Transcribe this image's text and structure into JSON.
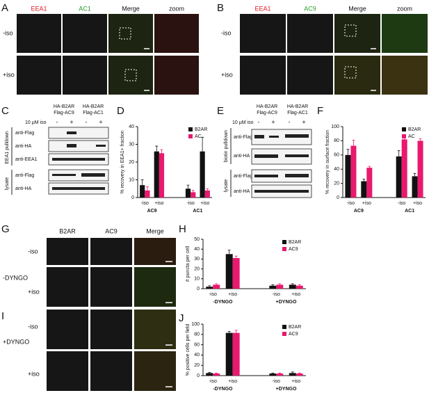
{
  "panels": {
    "A": {
      "letter": "A",
      "columns": [
        "EEA1",
        "AC1",
        "Merge",
        "zoom"
      ],
      "rows": [
        "-iso",
        "+iso"
      ]
    },
    "B": {
      "letter": "B",
      "columns": [
        "EEA1",
        "AC9",
        "Merge",
        "zoom"
      ],
      "rows": [
        "-iso",
        "+iso"
      ]
    },
    "C": {
      "letter": "C",
      "treatment": "10 μM iso",
      "lanes": [
        "-",
        "+",
        "-",
        "+"
      ],
      "samples": [
        [
          "HA-B2AR",
          "Flag-AC9"
        ],
        [
          "HA-B2AR",
          "Flag-AC1"
        ]
      ],
      "fractions": [
        "EEA1 pulldown",
        "lysate"
      ],
      "blots": [
        "anti-Flag",
        "anti-HA",
        "anti-EEA1",
        "anti-Flag",
        "anti-HA"
      ]
    },
    "D": {
      "letter": "D"
    },
    "E": {
      "letter": "E",
      "treatment": "10 μM iso",
      "lanes": [
        "-",
        "+",
        "-",
        "+"
      ],
      "samples": [
        [
          "HA-B2AR",
          "Flag-AC9"
        ],
        [
          "HA-B2AR",
          "Flag-AC1"
        ]
      ],
      "fractions": [
        "biotin pulldown",
        "lysate"
      ],
      "blots": [
        "anti-Flag",
        "anti-HA",
        "anti-Flag",
        "anti-HA"
      ]
    },
    "F": {
      "letter": "F"
    },
    "G": {
      "letter": "G",
      "columns": [
        "B2AR",
        "AC9",
        "Merge"
      ],
      "rows": [
        "-iso",
        "+iso"
      ],
      "condition": "-DYNGO"
    },
    "H": {
      "letter": "H"
    },
    "I": {
      "letter": "I",
      "rows": [
        "-iso",
        "+iso"
      ],
      "condition": "+DYNGO"
    },
    "J": {
      "letter": "J"
    }
  },
  "chart_data": [
    {
      "type": "bar",
      "ylabel": "% recovery in EEA1+ fraction",
      "categories": [
        "-iso",
        "+iso",
        "-iso",
        "+iso"
      ],
      "groups": [
        "AC9",
        "AC1"
      ],
      "series": [
        {
          "name": "B2AR",
          "color": "#111111",
          "values": [
            7,
            26,
            5,
            26
          ],
          "errors": [
            3,
            3,
            2,
            8
          ]
        },
        {
          "name": "AC",
          "color": "#e8196e",
          "values": [
            4,
            25,
            3,
            4
          ],
          "errors": [
            2,
            2,
            1,
            1
          ]
        }
      ],
      "ylim": [
        0,
        40
      ],
      "yticks": [
        0,
        10,
        20,
        30,
        40
      ],
      "legend": "upper right"
    },
    {
      "type": "bar",
      "ylabel": "% recovery in surface fraction",
      "categories": [
        "-iso",
        "+iso",
        "-iso",
        "+iso"
      ],
      "groups": [
        "AC9",
        "AC1"
      ],
      "series": [
        {
          "name": "B2AR",
          "color": "#111111",
          "values": [
            60,
            23,
            58,
            30
          ],
          "errors": [
            8,
            3,
            8,
            4
          ]
        },
        {
          "name": "AC",
          "color": "#e8196e",
          "values": [
            73,
            42,
            82,
            80
          ],
          "errors": [
            8,
            2,
            2,
            3
          ]
        }
      ],
      "ylim": [
        0,
        100
      ],
      "yticks": [
        0,
        20,
        40,
        60,
        80,
        100
      ],
      "legend": "upper right"
    },
    {
      "type": "bar",
      "ylabel": "# puncta per cell",
      "categories": [
        "-iso",
        "+iso",
        "-iso",
        "+iso"
      ],
      "groups": [
        "-DYNGO",
        "+DYNGO"
      ],
      "series": [
        {
          "name": "B2AR",
          "color": "#111111",
          "values": [
            2,
            35,
            3,
            4
          ],
          "errors": [
            1,
            4,
            1,
            1
          ]
        },
        {
          "name": "AC9",
          "color": "#e8196e",
          "values": [
            4,
            31,
            4,
            3
          ],
          "errors": [
            1,
            2,
            1,
            1
          ]
        }
      ],
      "ylim": [
        0,
        50
      ],
      "yticks": [
        0,
        10,
        20,
        30,
        40,
        50
      ],
      "legend": "upper right"
    },
    {
      "type": "bar",
      "ylabel": "% positive cells per field",
      "categories": [
        "-iso",
        "+iso",
        "-iso",
        "+iso"
      ],
      "groups": [
        "-DYNGO",
        "+DYNGO"
      ],
      "series": [
        {
          "name": "B2AR",
          "color": "#111111",
          "values": [
            5,
            83,
            4,
            5
          ],
          "errors": [
            1,
            3,
            1,
            2
          ]
        },
        {
          "name": "AC9",
          "color": "#e8196e",
          "values": [
            4,
            83,
            4,
            4
          ],
          "errors": [
            1,
            5,
            1,
            1
          ]
        }
      ],
      "ylim": [
        0,
        100
      ],
      "yticks": [
        0,
        20,
        40,
        60,
        80,
        100
      ],
      "legend": "upper right"
    }
  ]
}
